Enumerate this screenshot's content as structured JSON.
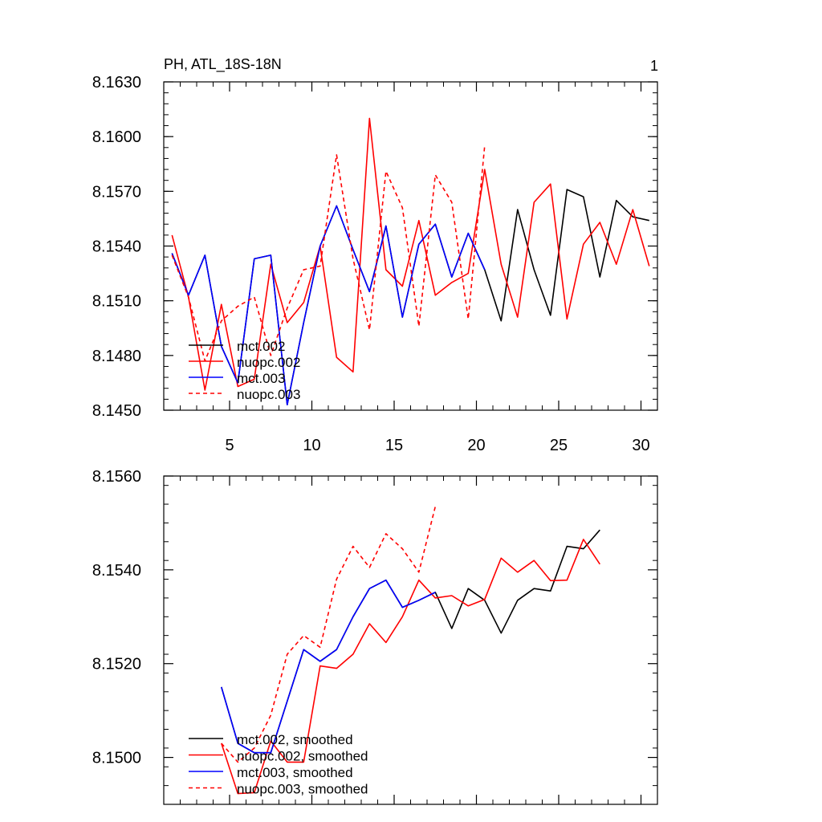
{
  "chart_data": [
    {
      "type": "line",
      "title": "PH, ATL_18S-18N",
      "corner_label": "1",
      "xlabel": "",
      "ylabel": "",
      "xlim": [
        1,
        31
      ],
      "ylim": [
        8.145,
        8.163
      ],
      "x_ticks": [
        5,
        10,
        15,
        20,
        25,
        30
      ],
      "x_tick_labels": [
        "5",
        "10",
        "15",
        "20",
        "25",
        "30"
      ],
      "y_ticks": [
        8.145,
        8.148,
        8.151,
        8.154,
        8.157,
        8.16,
        8.163
      ],
      "y_tick_labels": [
        "8.1450",
        "8.1480",
        "8.1510",
        "8.1540",
        "8.1570",
        "8.1600",
        "8.1630"
      ],
      "legend_position": "lower-left",
      "series": [
        {
          "name": "mct.002",
          "color": "#000000",
          "dash": "solid",
          "x": [
            1.5,
            2.5,
            3.5,
            4.5,
            5.5,
            6.5,
            7.5,
            8.5,
            9.5,
            10.5,
            11.5,
            12.5,
            13.5,
            14.5,
            15.5,
            16.5,
            17.5,
            18.5,
            19.5,
            20.5,
            21.5,
            22.5,
            23.5,
            24.5,
            25.5,
            26.5,
            27.5,
            28.5,
            29.5,
            30.5
          ],
          "values": [
            8.1536,
            8.1513,
            8.1535,
            8.1485,
            8.1465,
            8.1533,
            8.1535,
            8.1453,
            8.1498,
            8.154,
            8.1562,
            8.1538,
            8.1515,
            8.1551,
            8.1501,
            8.1541,
            8.1552,
            8.1523,
            8.1547,
            8.1527,
            8.1499,
            8.156,
            8.1527,
            8.1502,
            8.1571,
            8.1567,
            8.1523,
            8.1565,
            8.1556,
            8.1554
          ]
        },
        {
          "name": "nuopc.002",
          "color": "#ff0000",
          "dash": "solid",
          "x": [
            1.5,
            2.5,
            3.5,
            4.5,
            5.5,
            6.5,
            7.5,
            8.5,
            9.5,
            10.5,
            11.5,
            12.5,
            13.5,
            14.5,
            15.5,
            16.5,
            17.5,
            18.5,
            19.5,
            20.5,
            21.5,
            22.5,
            23.5,
            24.5,
            25.5,
            26.5,
            27.5,
            28.5,
            29.5,
            30.5
          ],
          "values": [
            8.1546,
            8.1512,
            8.1461,
            8.1508,
            8.1463,
            8.1467,
            8.153,
            8.1498,
            8.1509,
            8.154,
            8.1479,
            8.1471,
            8.161,
            8.1527,
            8.1518,
            8.1554,
            8.1513,
            8.152,
            8.1525,
            8.1582,
            8.153,
            8.1501,
            8.1564,
            8.1574,
            8.15,
            8.1541,
            8.1553,
            8.153,
            8.156,
            8.1529
          ]
        },
        {
          "name": "mct.003",
          "color": "#0000ff",
          "dash": "solid",
          "x": [
            1.5,
            2.5,
            3.5,
            4.5,
            5.5,
            6.5,
            7.5,
            8.5,
            9.5,
            10.5,
            11.5,
            12.5,
            13.5,
            14.5,
            15.5,
            16.5,
            17.5,
            18.5,
            19.5,
            20.5
          ],
          "values": [
            8.1536,
            8.1513,
            8.1535,
            8.1485,
            8.1465,
            8.1533,
            8.1535,
            8.1453,
            8.1498,
            8.154,
            8.1562,
            8.1538,
            8.1515,
            8.1551,
            8.1501,
            8.1541,
            8.1552,
            8.1523,
            8.1547,
            8.1527
          ]
        },
        {
          "name": "nuopc.003",
          "color": "#ff0000",
          "dash": "dashed",
          "x": [
            1.5,
            2.5,
            3.5,
            4.5,
            5.5,
            6.5,
            7.5,
            8.5,
            9.5,
            10.5,
            11.5,
            12.5,
            13.5,
            14.5,
            15.5,
            16.5,
            17.5,
            18.5,
            19.5,
            20.5
          ],
          "values": [
            8.1535,
            8.1512,
            8.1477,
            8.1499,
            8.1507,
            8.1512,
            8.148,
            8.1506,
            8.1527,
            8.1529,
            8.159,
            8.1533,
            8.1494,
            8.1581,
            8.1561,
            8.1496,
            8.1579,
            8.1564,
            8.15,
            8.1595
          ]
        }
      ]
    },
    {
      "type": "line",
      "title": "",
      "xlabel": "",
      "ylabel": "",
      "xlim": [
        1,
        31
      ],
      "ylim": [
        8.149,
        8.156
      ],
      "x_ticks": [
        5,
        10,
        15,
        20,
        25,
        30
      ],
      "y_ticks": [
        8.15,
        8.152,
        8.154,
        8.156
      ],
      "y_tick_labels": [
        "8.1500",
        "8.1520",
        "8.1540",
        "8.1560"
      ],
      "legend_position": "lower-left",
      "series": [
        {
          "name": "mct.002, smoothed",
          "color": "#000000",
          "dash": "solid",
          "x": [
            4.5,
            5.5,
            6.5,
            7.5,
            8.5,
            9.5,
            10.5,
            11.5,
            12.5,
            13.5,
            14.5,
            15.5,
            16.5,
            17.5,
            18.5,
            19.5,
            20.5,
            21.5,
            22.5,
            23.5,
            24.5,
            25.5,
            26.5,
            27.5
          ],
          "values": [
            8.1515,
            8.1503,
            8.1501,
            8.1501,
            8.1512,
            8.1523,
            8.15205,
            8.1523,
            8.153,
            8.1536,
            8.15378,
            8.1532,
            8.15335,
            8.15352,
            8.15275,
            8.1536,
            8.15335,
            8.15265,
            8.15335,
            8.1536,
            8.15355,
            8.1545,
            8.15445,
            8.15485
          ]
        },
        {
          "name": "nuopc.002, smoothed",
          "color": "#ff0000",
          "dash": "solid",
          "x": [
            4.5,
            5.5,
            6.5,
            7.5,
            8.5,
            9.5,
            10.5,
            11.5,
            12.5,
            13.5,
            14.5,
            15.5,
            16.5,
            17.5,
            18.5,
            19.5,
            20.5,
            21.5,
            22.5,
            23.5,
            24.5,
            25.5,
            26.5,
            27.5
          ],
          "values": [
            8.1503,
            8.14923,
            8.14925,
            8.15035,
            8.1499,
            8.1499,
            8.15195,
            8.1519,
            8.1522,
            8.15285,
            8.15245,
            8.153,
            8.15378,
            8.1534,
            8.15345,
            8.15323,
            8.15337,
            8.15425,
            8.15395,
            8.1542,
            8.15377,
            8.15378,
            8.15465,
            8.15412
          ]
        },
        {
          "name": "mct.003, smoothed",
          "color": "#0000ff",
          "dash": "solid",
          "x": [
            4.5,
            5.5,
            6.5,
            7.5,
            8.5,
            9.5,
            10.5,
            11.5,
            12.5,
            13.5,
            14.5,
            15.5,
            16.5,
            17.5
          ],
          "values": [
            8.1515,
            8.1503,
            8.1501,
            8.1501,
            8.1512,
            8.1523,
            8.15205,
            8.1523,
            8.153,
            8.1536,
            8.15378,
            8.1532,
            8.15335,
            8.15352
          ]
        },
        {
          "name": "nuopc.003, smoothed",
          "color": "#ff0000",
          "dash": "dashed",
          "x": [
            4.5,
            5.5,
            6.5,
            7.5,
            8.5,
            9.5,
            10.5,
            11.5,
            12.5,
            13.5,
            14.5,
            15.5,
            16.5,
            17.5
          ],
          "values": [
            8.1503,
            8.1499,
            8.1502,
            8.1509,
            8.1522,
            8.1526,
            8.15235,
            8.1538,
            8.1545,
            8.15405,
            8.15477,
            8.15445,
            8.15395,
            8.15535
          ]
        }
      ]
    }
  ]
}
